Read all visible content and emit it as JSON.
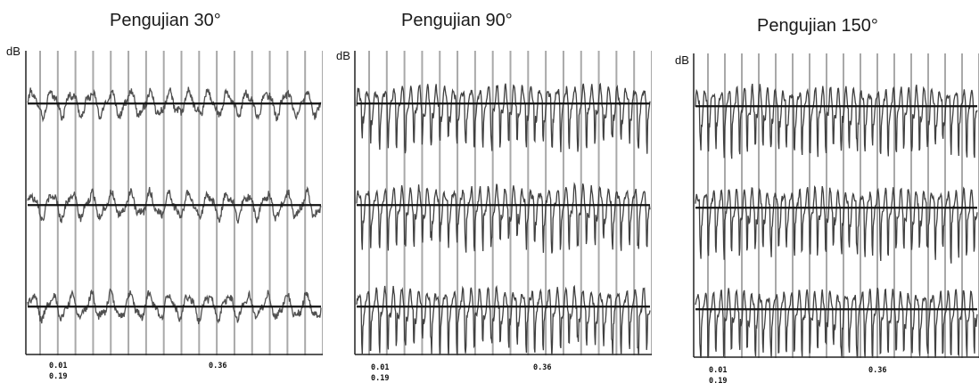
{
  "chart_data": [
    {
      "type": "line",
      "title": "Pengujian 30°",
      "ylabel": "dB",
      "x_ticks": [
        "0.01",
        "0.19",
        "0.36"
      ],
      "x_unit": "",
      "series": [
        {
          "baseline": 1,
          "cycles": 15,
          "amplitude": 0.32,
          "noise": 0.18,
          "spikes": false
        },
        {
          "baseline": 2,
          "cycles": 15,
          "amplitude": 0.32,
          "noise": 0.18,
          "spikes": false
        },
        {
          "baseline": 3,
          "cycles": 15,
          "amplitude": 0.32,
          "noise": 0.18,
          "spikes": false
        }
      ],
      "grid_vertical": true,
      "grid_count": 16,
      "colors": {
        "trace": "#505050",
        "baseline": "#111111",
        "grid": "#a9a9a9",
        "axis": "#222222"
      }
    },
    {
      "type": "line",
      "title": "Pengujian 90°",
      "ylabel": "dB",
      "x_ticks": [
        "0.01",
        "0.19",
        "0.36"
      ],
      "x_unit": "",
      "series": [
        {
          "baseline": 1,
          "cycles": 34,
          "amplitude": 0.42,
          "noise": 0.1,
          "spikes": true
        },
        {
          "baseline": 2,
          "cycles": 34,
          "amplitude": 0.42,
          "noise": 0.1,
          "spikes": true
        },
        {
          "baseline": 3,
          "cycles": 34,
          "amplitude": 0.42,
          "noise": 0.1,
          "spikes": true
        }
      ],
      "grid_vertical": true,
      "grid_count": 16,
      "colors": {
        "trace": "#404040",
        "baseline": "#111111",
        "grid": "#a9a9a9",
        "axis": "#222222"
      }
    },
    {
      "type": "line",
      "title": "Pengujian 150°",
      "ylabel": "dB",
      "x_ticks": [
        "0.01",
        "0.19",
        "0.36"
      ],
      "x_unit": "",
      "series": [
        {
          "baseline": 1,
          "cycles": 36,
          "amplitude": 0.45,
          "noise": 0.08,
          "spikes": true
        },
        {
          "baseline": 2,
          "cycles": 36,
          "amplitude": 0.45,
          "noise": 0.08,
          "spikes": true
        },
        {
          "baseline": 3,
          "cycles": 36,
          "amplitude": 0.45,
          "noise": 0.08,
          "spikes": true
        }
      ],
      "grid_vertical": true,
      "grid_count": 16,
      "colors": {
        "trace": "#404040",
        "baseline": "#111111",
        "grid": "#a9a9a9",
        "axis": "#222222"
      }
    }
  ]
}
